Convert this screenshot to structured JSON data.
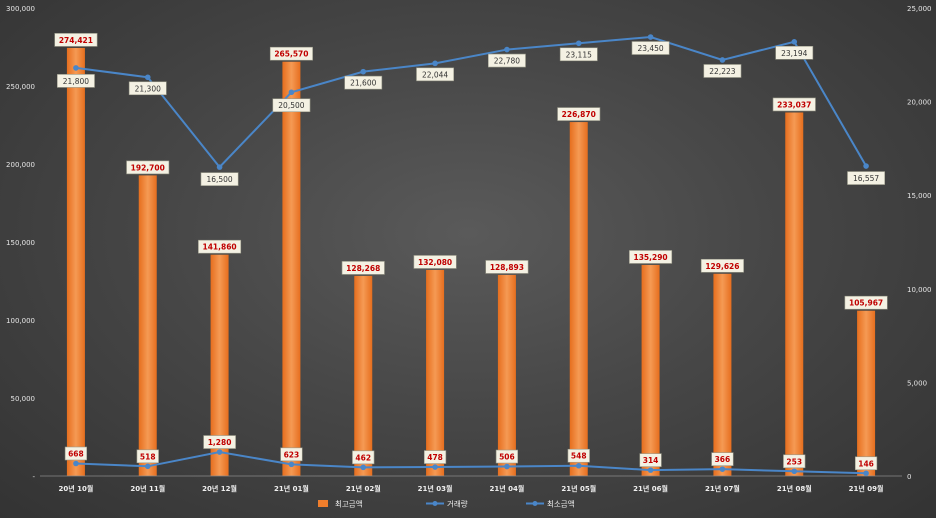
{
  "chart_data": {
    "type": "bar",
    "categories": [
      "20년 10월",
      "20년 11월",
      "20년 12월",
      "21년 01월",
      "21년 02월",
      "21년 03월",
      "21년 04월",
      "21년 05월",
      "21년 06월",
      "21년 07월",
      "21년 08월",
      "21년 09월"
    ],
    "series": [
      {
        "name": "최고금액",
        "type": "bar",
        "axis": "left",
        "color": "#f07e2c",
        "values": [
          274421,
          192700,
          141860,
          265570,
          128268,
          132080,
          128893,
          226870,
          135290,
          129626,
          233037,
          105967
        ],
        "labels": [
          "274,421",
          "192,700",
          "141,860",
          "265,570",
          "128,268",
          "132,080",
          "128,893",
          "226,870",
          "135,290",
          "129,626",
          "233,037",
          "105,967"
        ]
      },
      {
        "name": "거래량",
        "type": "line",
        "axis": "right",
        "color": "#4a86c8",
        "values": [
          668,
          518,
          1280,
          623,
          462,
          478,
          506,
          548,
          314,
          366,
          253,
          146
        ],
        "labels": [
          "668",
          "518",
          "1,280",
          "623",
          "462",
          "478",
          "506",
          "548",
          "314",
          "366",
          "253",
          "146"
        ]
      },
      {
        "name": "최소금액",
        "type": "line",
        "axis": "right",
        "color": "#4a86c8",
        "values": [
          21800,
          21300,
          16500,
          20500,
          21600,
          22044,
          22780,
          23115,
          23450,
          22223,
          23194,
          16557
        ],
        "labels": [
          "21,800",
          "21,300",
          "16,500",
          "20,500",
          "21,600",
          "22,044",
          "22,780",
          "23,115",
          "23,450",
          "22,223",
          "23,194",
          "16,557"
        ]
      }
    ],
    "y_left": {
      "ylim": [
        0,
        300000
      ],
      "ticks": [
        0,
        50000,
        100000,
        150000,
        200000,
        250000,
        300000
      ],
      "tick_labels": [
        "-",
        "50,000",
        "100,000",
        "150,000",
        "200,000",
        "250,000",
        "300,000"
      ]
    },
    "y_right": {
      "ylim": [
        0,
        25000
      ],
      "ticks": [
        0,
        5000,
        10000,
        15000,
        20000,
        25000
      ],
      "tick_labels": [
        "0",
        "5,000",
        "10,000",
        "15,000",
        "20,000",
        "25,000"
      ]
    },
    "legend": {
      "position": "bottom",
      "items": [
        "최고금액",
        "거래량",
        "최소금액"
      ]
    },
    "grid": false,
    "bar_label_color": "#c00000"
  }
}
